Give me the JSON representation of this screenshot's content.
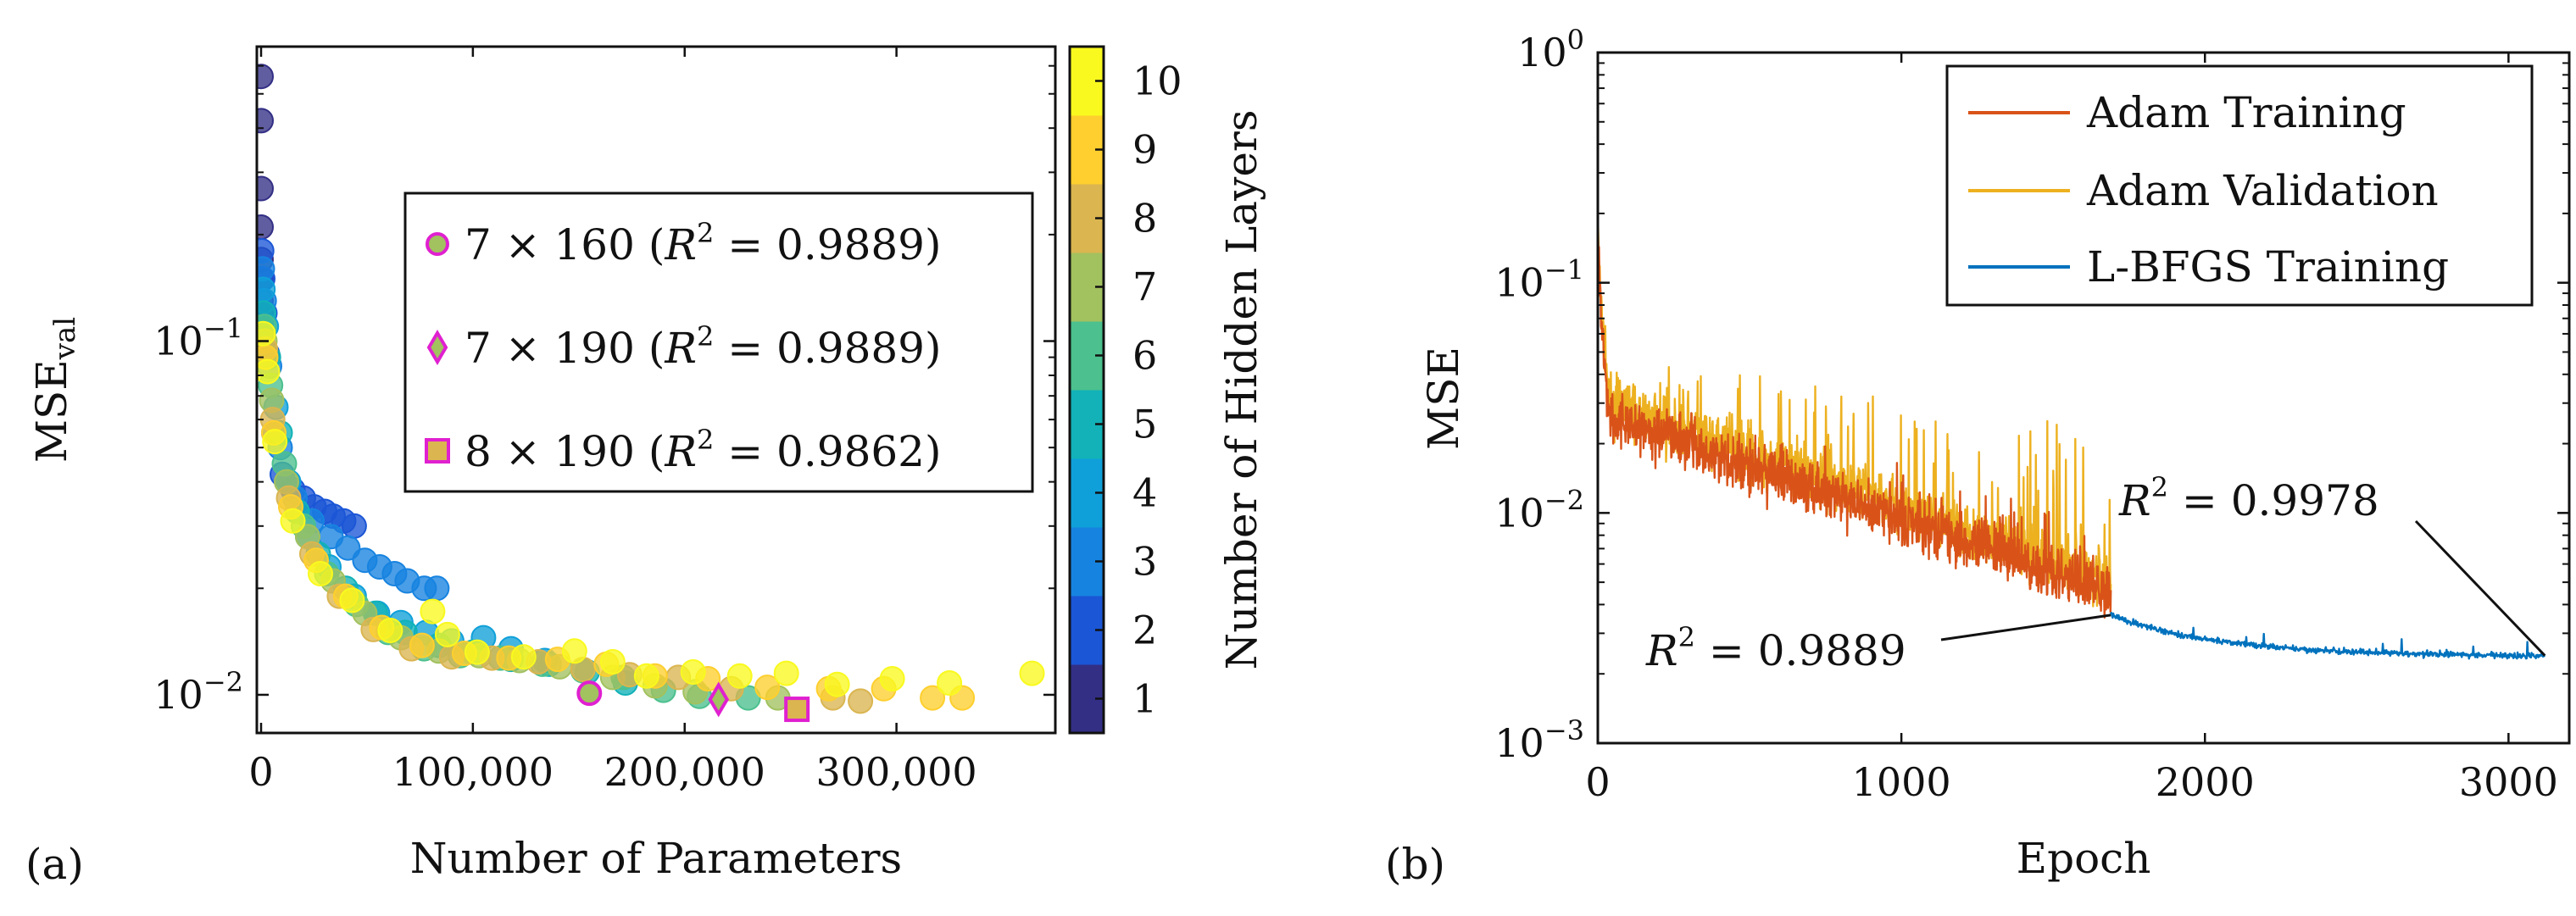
{
  "chart_data": [
    {
      "panel_label": "(a)",
      "type": "scatter",
      "xlabel": "Number of Parameters",
      "ylabel": "MSE",
      "ylabel_sub": "val",
      "yscale": "log",
      "xlim": [
        -2000,
        375000
      ],
      "ylim": [
        0.0078,
        0.68
      ],
      "x_ticks": [
        0,
        100000,
        200000,
        300000
      ],
      "x_tick_labels": [
        "0",
        "100,000",
        "200,000",
        "300,000"
      ],
      "y_ticks": [
        0.01,
        0.1
      ],
      "y_tick_labels": [
        {
          "base": "10",
          "exp": "−2"
        },
        {
          "base": "10",
          "exp": "−1"
        }
      ],
      "colorbar": {
        "label": "Number of Hidden Layers",
        "levels": [
          1,
          2,
          3,
          4,
          5,
          6,
          7,
          8,
          9,
          10
        ],
        "colors": [
          "#332f85",
          "#1b56d6",
          "#1783e0",
          "#0fa0d9",
          "#12b2b8",
          "#4cc08e",
          "#a2c15f",
          "#dab550",
          "#fecf2e",
          "#f9f91f"
        ]
      },
      "highlighted": [
        {
          "layers": 7,
          "neurons": 160,
          "r2": "0.9889",
          "label": "7 × 160 (R² = 0.9889)",
          "x": 155000,
          "y": 0.0101,
          "marker": "circle"
        },
        {
          "layers": 7,
          "neurons": 190,
          "r2": "0.9889",
          "label": "7 × 190 (R² = 0.9889)",
          "x": 216000,
          "y": 0.0097,
          "marker": "diamond"
        },
        {
          "layers": 8,
          "neurons": 190,
          "r2": "0.9862",
          "label": "8 × 190 (R² = 0.9862)",
          "x": 253000,
          "y": 0.0091,
          "marker": "square"
        }
      ],
      "legend_position": "center-right",
      "highlight_color": "#e020d0",
      "series": [
        {
          "name": "1 layer",
          "layers": 1,
          "points": [
            [
              0,
              0.56
            ],
            [
              0,
              0.42
            ],
            [
              0,
              0.27
            ],
            [
              0,
              0.21
            ],
            [
              0,
              0.17
            ],
            [
              0,
              0.15
            ],
            [
              0,
              0.13
            ],
            [
              0,
              0.12
            ],
            [
              0,
              0.11
            ],
            [
              0,
              0.1
            ]
          ]
        },
        {
          "name": "2 layers",
          "layers": 2,
          "points": [
            [
              300,
              0.18
            ],
            [
              800,
              0.15
            ],
            [
              1800,
              0.12
            ],
            [
              3000,
              0.092
            ],
            [
              6000,
              0.055
            ],
            [
              10000,
              0.042
            ],
            [
              15000,
              0.038
            ],
            [
              20000,
              0.036
            ],
            [
              25000,
              0.034
            ],
            [
              30000,
              0.033
            ],
            [
              34000,
              0.032
            ],
            [
              39000,
              0.031
            ],
            [
              44000,
              0.03
            ]
          ]
        },
        {
          "name": "3 layers",
          "layers": 3,
          "points": [
            [
              600,
              0.16
            ],
            [
              1500,
              0.13
            ],
            [
              4000,
              0.085
            ],
            [
              9000,
              0.05
            ],
            [
              16000,
              0.036
            ],
            [
              24000,
              0.031
            ],
            [
              33000,
              0.028
            ],
            [
              41000,
              0.026
            ],
            [
              49000,
              0.024
            ],
            [
              56000,
              0.023
            ],
            [
              63000,
              0.022
            ],
            [
              69000,
              0.021
            ],
            [
              77000,
              0.02
            ],
            [
              83000,
              0.02
            ]
          ]
        },
        {
          "name": "4 layers",
          "layers": 4,
          "points": [
            [
              900,
              0.14
            ],
            [
              2500,
              0.11
            ],
            [
              7000,
              0.065
            ],
            [
              13000,
              0.04
            ],
            [
              22000,
              0.028
            ],
            [
              32000,
              0.023
            ],
            [
              44000,
              0.019
            ],
            [
              55000,
              0.017
            ],
            [
              66000,
              0.016
            ],
            [
              78000,
              0.015
            ],
            [
              90000,
              0.0142
            ],
            [
              105000,
              0.0145
            ],
            [
              118000,
              0.0135
            ],
            [
              134000,
              0.0125
            ]
          ]
        },
        {
          "name": "5 layers",
          "layers": 5,
          "points": [
            [
              1200,
              0.12
            ],
            [
              3500,
              0.09
            ],
            [
              9000,
              0.055
            ],
            [
              17000,
              0.033
            ],
            [
              27000,
              0.025
            ],
            [
              40000,
              0.02
            ],
            [
              54000,
              0.017
            ],
            [
              68000,
              0.015
            ],
            [
              84000,
              0.0138
            ],
            [
              100000,
              0.0132
            ],
            [
              118000,
              0.0126
            ],
            [
              136000,
              0.0122
            ],
            [
              154000,
              0.0116
            ],
            [
              172000,
              0.0108
            ]
          ]
        },
        {
          "name": "6 layers",
          "layers": 6,
          "points": [
            [
              1500,
              0.11
            ],
            [
              4500,
              0.075
            ],
            [
              11000,
              0.045
            ],
            [
              20000,
              0.03
            ],
            [
              31000,
              0.022
            ],
            [
              45000,
              0.018
            ],
            [
              60000,
              0.015
            ],
            [
              77000,
              0.0135
            ],
            [
              94000,
              0.0129
            ],
            [
              113000,
              0.0127
            ],
            [
              133000,
              0.0122
            ],
            [
              152000,
              0.0117
            ],
            [
              171000,
              0.0112
            ],
            [
              190000,
              0.0103
            ],
            [
              207000,
              0.0099
            ],
            [
              230000,
              0.0098
            ]
          ]
        },
        {
          "name": "7 layers",
          "layers": 7,
          "points": [
            [
              1800,
              0.1
            ],
            [
              5000,
              0.068
            ],
            [
              12000,
              0.04
            ],
            [
              22000,
              0.028
            ],
            [
              34000,
              0.021
            ],
            [
              49000,
              0.017
            ],
            [
              66000,
              0.0145
            ],
            [
              84000,
              0.0133
            ],
            [
              103000,
              0.0129
            ],
            [
              122000,
              0.0125
            ],
            [
              141000,
              0.012
            ],
            [
              166000,
              0.0112
            ],
            [
              186000,
              0.0106
            ],
            [
              205000,
              0.0102
            ],
            [
              244000,
              0.0098
            ]
          ]
        },
        {
          "name": "8 layers",
          "layers": 8,
          "points": [
            [
              2000,
              0.095
            ],
            [
              5500,
              0.06
            ],
            [
              13000,
              0.036
            ],
            [
              24000,
              0.025
            ],
            [
              37000,
              0.019
            ],
            [
              53000,
              0.0153
            ],
            [
              71000,
              0.0135
            ],
            [
              90000,
              0.0128
            ],
            [
              109000,
              0.0127
            ],
            [
              131000,
              0.0124
            ],
            [
              152000,
              0.0118
            ],
            [
              174000,
              0.0114
            ],
            [
              197000,
              0.0112
            ],
            [
              222000,
              0.0104
            ],
            [
              270000,
              0.0098
            ],
            [
              283000,
              0.0096
            ]
          ]
        },
        {
          "name": "9 layers",
          "layers": 9,
          "points": [
            [
              2200,
              0.09
            ],
            [
              6000,
              0.055
            ],
            [
              14000,
              0.034
            ],
            [
              26000,
              0.024
            ],
            [
              40000,
              0.019
            ],
            [
              57000,
              0.0155
            ],
            [
              76000,
              0.0138
            ],
            [
              96000,
              0.0131
            ],
            [
              117000,
              0.0127
            ],
            [
              140000,
              0.0126
            ],
            [
              163000,
              0.0122
            ],
            [
              186000,
              0.0113
            ],
            [
              211000,
              0.0111
            ],
            [
              239000,
              0.0105
            ],
            [
              268000,
              0.0104
            ],
            [
              294000,
              0.0104
            ],
            [
              317000,
              0.0098
            ],
            [
              331000,
              0.0098
            ]
          ]
        },
        {
          "name": "10 layers",
          "layers": 10,
          "points": [
            [
              1000,
              0.105
            ],
            [
              3000,
              0.082
            ],
            [
              6500,
              0.052
            ],
            [
              15000,
              0.031
            ],
            [
              28000,
              0.022
            ],
            [
              43000,
              0.0185
            ],
            [
              61000,
              0.0152
            ],
            [
              81000,
              0.0172
            ],
            [
              88000,
              0.0148
            ],
            [
              102000,
              0.0132
            ],
            [
              124000,
              0.0128
            ],
            [
              148000,
              0.0133
            ],
            [
              166000,
              0.0124
            ],
            [
              182000,
              0.0113
            ],
            [
              204000,
              0.0116
            ],
            [
              226000,
              0.0113
            ],
            [
              248000,
              0.0115
            ],
            [
              272000,
              0.0107
            ],
            [
              298000,
              0.0111
            ],
            [
              325000,
              0.0108
            ],
            [
              364000,
              0.0115
            ]
          ]
        }
      ]
    },
    {
      "panel_label": "(b)",
      "type": "line",
      "xlabel": "Epoch",
      "ylabel": "MSE",
      "yscale": "log",
      "xlim": [
        0,
        3200
      ],
      "ylim": [
        0.001,
        1
      ],
      "x_ticks": [
        0,
        1000,
        2000,
        3000
      ],
      "x_tick_labels": [
        "0",
        "1000",
        "2000",
        "3000"
      ],
      "y_ticks": [
        0.001,
        0.01,
        0.1,
        1
      ],
      "y_tick_labels": [
        {
          "base": "10",
          "exp": "−3"
        },
        {
          "base": "10",
          "exp": "−2"
        },
        {
          "base": "10",
          "exp": "−1"
        },
        {
          "base": "10",
          "exp": "0"
        }
      ],
      "legend_position": "top-right",
      "series": [
        {
          "name": "Adam Training",
          "color": "#d95319",
          "x_range": [
            0,
            1690
          ],
          "start": 0.24,
          "knee": 0.026,
          "end": 0.0045,
          "noise": "moderate"
        },
        {
          "name": "Adam Validation",
          "color": "#edb120",
          "x_range": [
            0,
            1690
          ],
          "start": 0.22,
          "knee": 0.03,
          "end": 0.005,
          "noise": "high spikes up to ~0.045"
        },
        {
          "name": "L-BFGS Training",
          "color": "#0072bd",
          "x_range": [
            1690,
            3120
          ],
          "start": 0.0036,
          "end": 0.0024,
          "noise": "low"
        }
      ],
      "annotations": [
        {
          "text_pre": "R",
          "exp": "2",
          "text_post": " = 0.9889",
          "target": [
            1690,
            0.0036
          ]
        },
        {
          "text_pre": "R",
          "exp": "2",
          "text_post": " = 0.9978",
          "target": [
            3120,
            0.0024
          ]
        }
      ]
    }
  ]
}
